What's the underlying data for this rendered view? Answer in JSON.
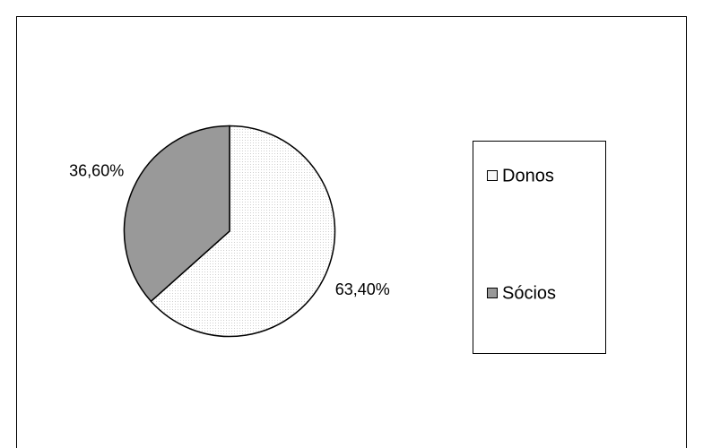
{
  "chart_data": {
    "type": "pie",
    "categories": [
      "Donos",
      "Sócios"
    ],
    "values": [
      63.4,
      36.6
    ],
    "value_labels": [
      "63,40%",
      "36,60%"
    ],
    "colors": [
      "#f7f7f7",
      "#999999"
    ],
    "legend": "right"
  }
}
